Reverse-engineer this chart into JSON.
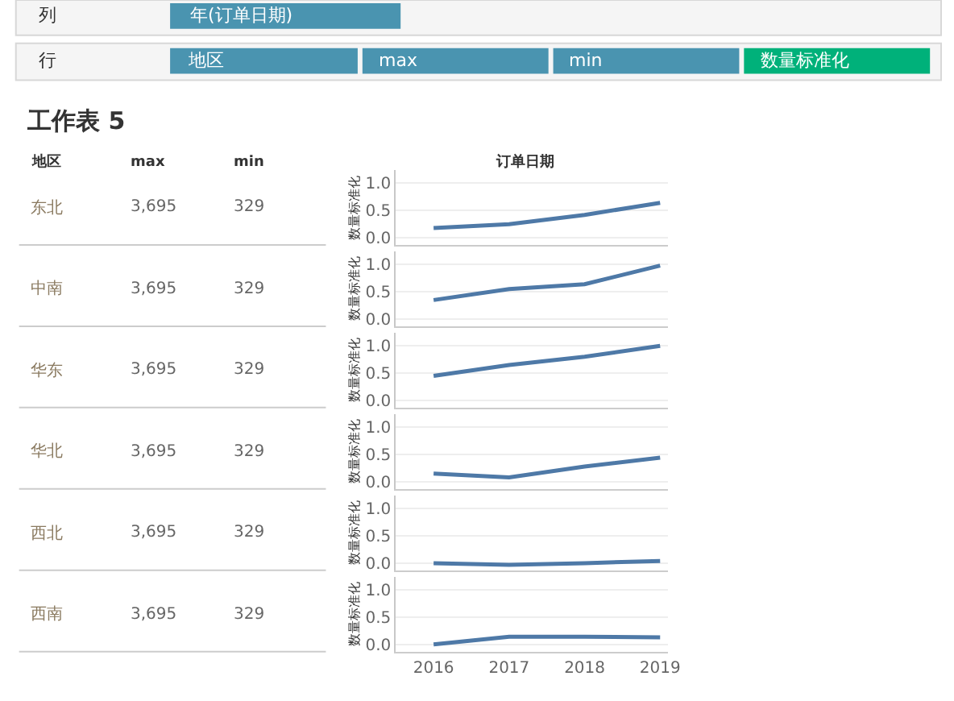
{
  "chart_data": [
    {
      "type": "line",
      "annotations": [
        "东北",
        "3,695",
        "329"
      ],
      "ylabel": "数量标准化",
      "x": [
        2016,
        2017,
        2018,
        2019
      ],
      "xlim": [
        2015.5,
        2019.1
      ],
      "xticks": [
        2016,
        2017,
        2018,
        2019
      ],
      "ylim": [
        -0.13,
        1.24
      ],
      "yticks": [
        {
          "value": 0,
          "label": "0.0"
        },
        {
          "value": 0.5,
          "label": "0.5"
        },
        {
          "value": 1,
          "label": "1.0"
        }
      ],
      "color": "#4e79a7",
      "grid": "y",
      "tick_labels": "y",
      "values": [
        0.18,
        0.25,
        0.42,
        0.64
      ]
    },
    {
      "type": "line",
      "annotations": [
        "中南",
        "3,695",
        "329"
      ],
      "ylabel": "数量标准化",
      "x": [
        2016,
        2017,
        2018,
        2019
      ],
      "xlim": [
        2015.5,
        2019.1
      ],
      "xticks": [
        2016,
        2017,
        2018,
        2019
      ],
      "ylim": [
        -0.13,
        1.24
      ],
      "yticks": [
        {
          "value": 0,
          "label": "0.0"
        },
        {
          "value": 0.5,
          "label": "0.5"
        },
        {
          "value": 1,
          "label": "1.0"
        }
      ],
      "color": "#4e79a7",
      "grid": "y",
      "tick_labels": "y",
      "values": [
        0.35,
        0.55,
        0.64,
        0.98
      ]
    },
    {
      "type": "line",
      "annotations": [
        "华东",
        "3,695",
        "329"
      ],
      "ylabel": "数量标准化",
      "x": [
        2016,
        2017,
        2018,
        2019
      ],
      "xlim": [
        2015.5,
        2019.1
      ],
      "xticks": [
        2016,
        2017,
        2018,
        2019
      ],
      "ylim": [
        -0.13,
        1.24
      ],
      "yticks": [
        {
          "value": 0,
          "label": "0.0"
        },
        {
          "value": 0.5,
          "label": "0.5"
        },
        {
          "value": 1,
          "label": "1.0"
        }
      ],
      "color": "#4e79a7",
      "grid": "y",
      "tick_labels": "y",
      "values": [
        0.45,
        0.65,
        0.8,
        1.0
      ]
    },
    {
      "type": "line",
      "annotations": [
        "华北",
        "3,695",
        "329"
      ],
      "ylabel": "数量标准化",
      "x": [
        2016,
        2017,
        2018,
        2019
      ],
      "xlim": [
        2015.5,
        2019.1
      ],
      "xticks": [
        2016,
        2017,
        2018,
        2019
      ],
      "ylim": [
        -0.13,
        1.24
      ],
      "yticks": [
        {
          "value": 0,
          "label": "0.0"
        },
        {
          "value": 0.5,
          "label": "0.5"
        },
        {
          "value": 1,
          "label": "1.0"
        }
      ],
      "color": "#4e79a7",
      "grid": "y",
      "tick_labels": "y",
      "values": [
        0.15,
        0.08,
        0.28,
        0.44
      ]
    },
    {
      "type": "line",
      "annotations": [
        "西北",
        "3,695",
        "329"
      ],
      "ylabel": "数量标准化",
      "x": [
        2016,
        2017,
        2018,
        2019
      ],
      "xlim": [
        2015.5,
        2019.1
      ],
      "xticks": [
        2016,
        2017,
        2018,
        2019
      ],
      "ylim": [
        -0.13,
        1.24
      ],
      "yticks": [
        {
          "value": 0,
          "label": "0.0"
        },
        {
          "value": 0.5,
          "label": "0.5"
        },
        {
          "value": 1,
          "label": "1.0"
        }
      ],
      "color": "#4e79a7",
      "grid": "y",
      "tick_labels": "y",
      "values": [
        0.0,
        -0.03,
        0.0,
        0.04
      ]
    },
    {
      "type": "line",
      "annotations": [
        "西南",
        "3,695",
        "329"
      ],
      "ylabel": "数量标准化",
      "x": [
        2016,
        2017,
        2018,
        2019
      ],
      "xlim": [
        2015.5,
        2019.1
      ],
      "xticks": [
        2016,
        2017,
        2018,
        2019
      ],
      "ylim": [
        -0.13,
        1.24
      ],
      "yticks": [
        {
          "value": 0,
          "label": "0.0"
        },
        {
          "value": 0.5,
          "label": "0.5"
        },
        {
          "value": 1,
          "label": "1.0"
        }
      ],
      "color": "#4e79a7",
      "grid": "y",
      "values": [
        0.0,
        0.14,
        0.14,
        0.13
      ]
    },
    {
      "type": "other",
      "title": "工作表 5",
      "annotations": [
        "列",
        "年(订单日期)",
        "行",
        "地区",
        "max",
        "min",
        "数量标准化",
        "地区",
        "max",
        "min",
        "订单日期"
      ]
    }
  ]
}
